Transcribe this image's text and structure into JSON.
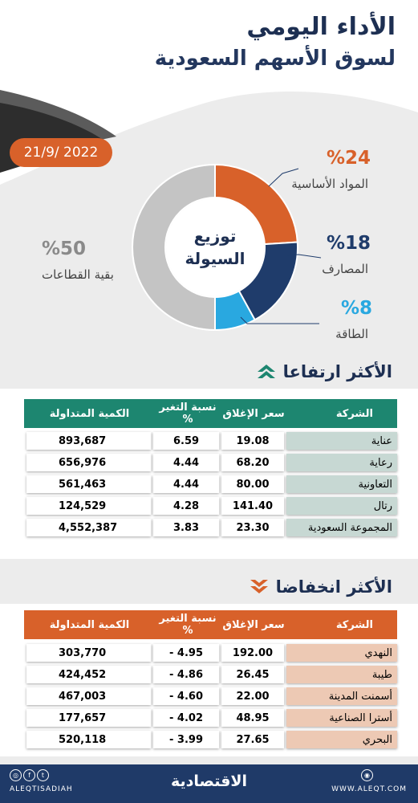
{
  "header": {
    "title_line1": "الأداء اليومي",
    "title_line2": "لسوق الأسهم السعودية",
    "date": "21/9/ 2022"
  },
  "chart_data": {
    "type": "pie",
    "center_label": [
      "توزيع",
      "السيولة"
    ],
    "slices": [
      {
        "label": "المواد الأساسية",
        "value": 24,
        "value_text": "%24",
        "color": "#d8612a"
      },
      {
        "label": "المصارف",
        "value": 18,
        "value_text": "%18",
        "color": "#1f3c6b"
      },
      {
        "label": "الطاقة",
        "value": 8,
        "value_text": "%8",
        "color": "#29a8e0"
      },
      {
        "label": "بقية القطاعات",
        "value": 50,
        "value_text": "%50",
        "color": "#c4c4c4"
      }
    ]
  },
  "gainers": {
    "title": "الأكثر ارتفاعا",
    "headers": [
      "الشركة",
      "سعر الإغلاق",
      "نسبة التغير %",
      "الكمية المتداولة"
    ],
    "header_color": "#1d8670",
    "rows": [
      [
        "عناية",
        "19.08",
        "6.59",
        "893,687"
      ],
      [
        "رعاية",
        "68.20",
        "4.44",
        "656,976"
      ],
      [
        "التعاونية",
        "80.00",
        "4.44",
        "561,463"
      ],
      [
        "رتال",
        "141.40",
        "4.28",
        "124,529"
      ],
      [
        "المجموعة السعودية",
        "23.30",
        "3.83",
        "4,552,387"
      ]
    ]
  },
  "losers": {
    "title": "الأكثر انخفاضا",
    "headers": [
      "الشركة",
      "سعر الإغلاق",
      "نسبة التغير %",
      "الكمية المتداولة"
    ],
    "header_color": "#d8612a",
    "rows": [
      [
        "النهدي",
        "192.00",
        "4.95 -",
        "303,770"
      ],
      [
        "طيبة",
        "26.45",
        "4.86 -",
        "424,452"
      ],
      [
        "أسمنت المدينة",
        "22.00",
        "4.60 -",
        "467,003"
      ],
      [
        "أسترا الصناعية",
        "48.95",
        "4.02 -",
        "177,657"
      ],
      [
        "البحري",
        "27.65",
        "3.99 -",
        "520,118"
      ]
    ]
  },
  "footer": {
    "handle": "ALEQTISADIAH",
    "logo": "الاقتصادية",
    "url": "WWW.ALEQT.COM",
    "color": "#1f3a68"
  }
}
